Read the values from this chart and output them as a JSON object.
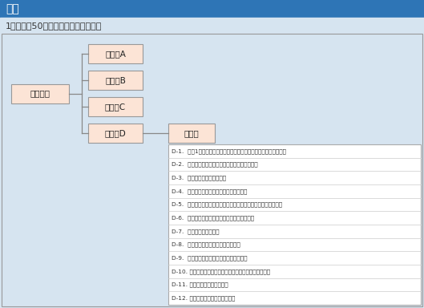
{
  "title": "従来",
  "subtitle": "1サービス50問程度の大量の定量質問",
  "title_bg": "#2E75B6",
  "subtitle_bg": "#D6E4F0",
  "main_bg": "#D6E4F0",
  "box_fill": "#FCE4D6",
  "box_edge": "#999999",
  "table_bg": "#FFFFFF",
  "table_border": "#AAAAAA",
  "boxes": [
    "総合満足",
    "中設問A",
    "中設問B",
    "中設問C",
    "中設問D",
    "小設問"
  ],
  "table_rows": [
    "D-1.  直近1年以内に導入や追加・変更等をしたことがありますか。",
    "D-2.  お申し込み・サービス内容に関する説明対応",
    "D-3.  見積回答までのスピード",
    "D-4.  利用開始日（納期）の回答のスピード",
    "D-5.  お申し込みからご利用開始までのご連絡・調整のスムーズさ",
    "D-6.  申込書内容のわかりやすさ、記載しやすさ",
    "D-7.  利用開始工事の対応",
    "D-8.  お客さま利用開始希望日の遵守度",
    "D-9.  パンフレット・提案書のわかりやすさ",
    "D-10. サービス機能説明書（提供条件書）のわかりやすさ",
    "D-11. 開通案内のわかりやすさ",
    "D-12. ご利用ガイドのわかりやすさ"
  ]
}
